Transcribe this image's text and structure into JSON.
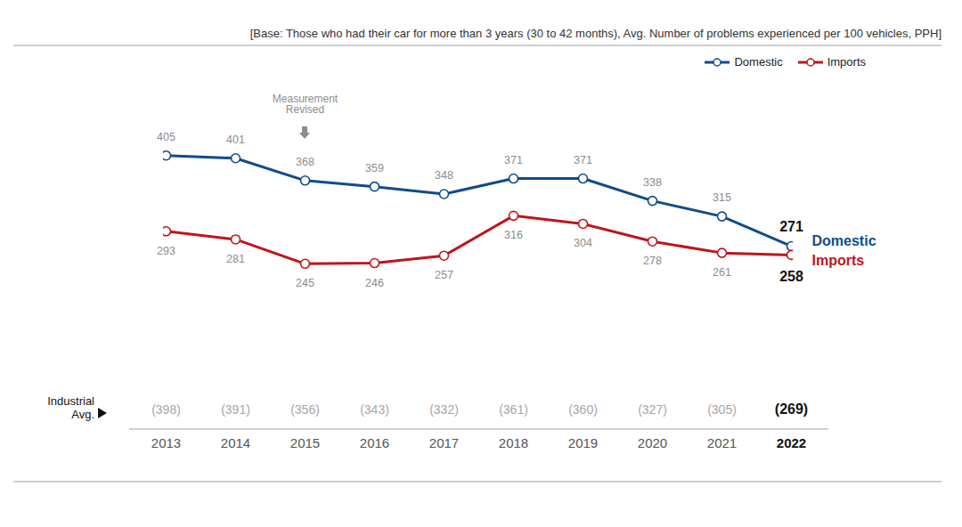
{
  "chart_data": {
    "type": "line",
    "subtitle": "[Base:  Those who had their car for more than 3 years (30 to 42 months), Avg. Number of problems experienced per 100 vehicles, PPH]",
    "categories": [
      "2013",
      "2014",
      "2015",
      "2016",
      "2017",
      "2018",
      "2019",
      "2020",
      "2021",
      "2022"
    ],
    "series": [
      {
        "name": "Domestic",
        "color": "#0f4c8a",
        "values": [
          405,
          401,
          368,
          359,
          348,
          371,
          371,
          338,
          315,
          271
        ]
      },
      {
        "name": "Imports",
        "color": "#c0141c",
        "values": [
          293,
          281,
          245,
          246,
          257,
          316,
          304,
          278,
          261,
          258
        ]
      }
    ],
    "industrial_avg": {
      "label": "Industrial Avg.",
      "values": [
        398,
        391,
        356,
        343,
        332,
        361,
        360,
        327,
        305,
        269
      ],
      "value_labels": [
        "(398)",
        "(391)",
        "(356)",
        "(343)",
        "(332)",
        "(361)",
        "(360)",
        "(327)",
        "(305)",
        "(269)"
      ]
    },
    "annotations": [
      {
        "text": "Measurement Revised",
        "x": "2015"
      }
    ],
    "ylim": [
      200,
      450
    ],
    "marker": "circle",
    "data_labels": true,
    "legend": "top-right",
    "grid": false,
    "tick_labels": "x"
  }
}
